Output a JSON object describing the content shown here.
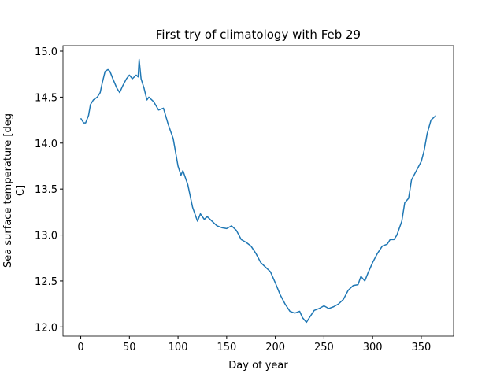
{
  "chart_data": {
    "type": "line",
    "title": "First try of climatology with Feb 29",
    "xlabel": "Day of year",
    "ylabel": [
      "Sea surface temperature [deg",
      "C]"
    ],
    "color": "#1f77b4",
    "x": [
      0,
      3,
      5,
      8,
      10,
      13,
      17,
      20,
      22,
      25,
      28,
      30,
      33,
      37,
      40,
      43,
      47,
      50,
      53,
      57,
      59,
      60,
      62,
      65,
      68,
      70,
      75,
      80,
      85,
      90,
      95,
      100,
      103,
      105,
      110,
      115,
      120,
      123,
      127,
      130,
      135,
      140,
      145,
      150,
      155,
      160,
      165,
      170,
      175,
      180,
      185,
      190,
      195,
      200,
      205,
      210,
      215,
      220,
      225,
      228,
      232,
      235,
      240,
      245,
      250,
      255,
      260,
      265,
      270,
      275,
      280,
      285,
      288,
      292,
      295,
      300,
      305,
      310,
      315,
      318,
      322,
      325,
      330,
      333,
      337,
      340,
      345,
      350,
      353,
      356,
      360,
      365
    ],
    "values": [
      14.27,
      14.22,
      14.22,
      14.3,
      14.42,
      14.47,
      14.5,
      14.55,
      14.65,
      14.78,
      14.8,
      14.78,
      14.7,
      14.6,
      14.55,
      14.62,
      14.7,
      14.74,
      14.7,
      14.74,
      14.72,
      14.91,
      14.7,
      14.6,
      14.47,
      14.5,
      14.45,
      14.36,
      14.38,
      14.2,
      14.05,
      13.75,
      13.65,
      13.7,
      13.55,
      13.3,
      13.15,
      13.23,
      13.17,
      13.2,
      13.15,
      13.1,
      13.08,
      13.07,
      13.1,
      13.05,
      12.95,
      12.92,
      12.88,
      12.8,
      12.7,
      12.65,
      12.6,
      12.48,
      12.35,
      12.25,
      12.17,
      12.15,
      12.17,
      12.1,
      12.05,
      12.1,
      12.18,
      12.2,
      12.23,
      12.2,
      12.22,
      12.25,
      12.3,
      12.4,
      12.45,
      12.46,
      12.55,
      12.5,
      12.58,
      12.7,
      12.8,
      12.88,
      12.9,
      12.95,
      12.95,
      13.0,
      13.15,
      13.35,
      13.4,
      13.6,
      13.7,
      13.8,
      13.92,
      14.1,
      14.25,
      14.3
    ],
    "xlim": [
      -18.25,
      383.25
    ],
    "ylim": [
      11.9,
      15.06
    ],
    "xticks": [
      0,
      50,
      100,
      150,
      200,
      250,
      300,
      350
    ],
    "yticks": [
      {
        "value": 12,
        "label": "12.0"
      },
      12.5,
      {
        "value": 13,
        "label": "13.0"
      },
      13.5,
      {
        "value": 14,
        "label": "14.0"
      },
      14.5,
      {
        "value": 15,
        "label": "15.0"
      }
    ]
  }
}
